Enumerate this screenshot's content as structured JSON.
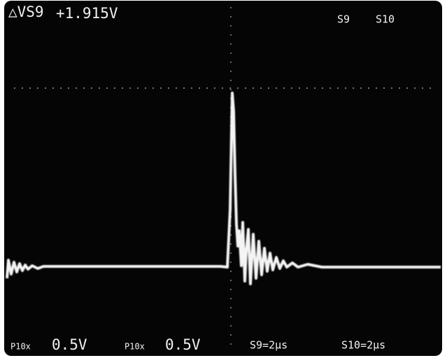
{
  "header": {
    "delta_label": "△VS9",
    "delta_value": "+1.915V",
    "channels": [
      "S9",
      "S10"
    ]
  },
  "footer": {
    "channel_1": {
      "probe": "P10x",
      "scale": "0.5V"
    },
    "channel_2": {
      "probe": "P10x",
      "scale": "0.5V"
    },
    "timebase": [
      "S9=2μs",
      "S10=2μs"
    ]
  }
}
